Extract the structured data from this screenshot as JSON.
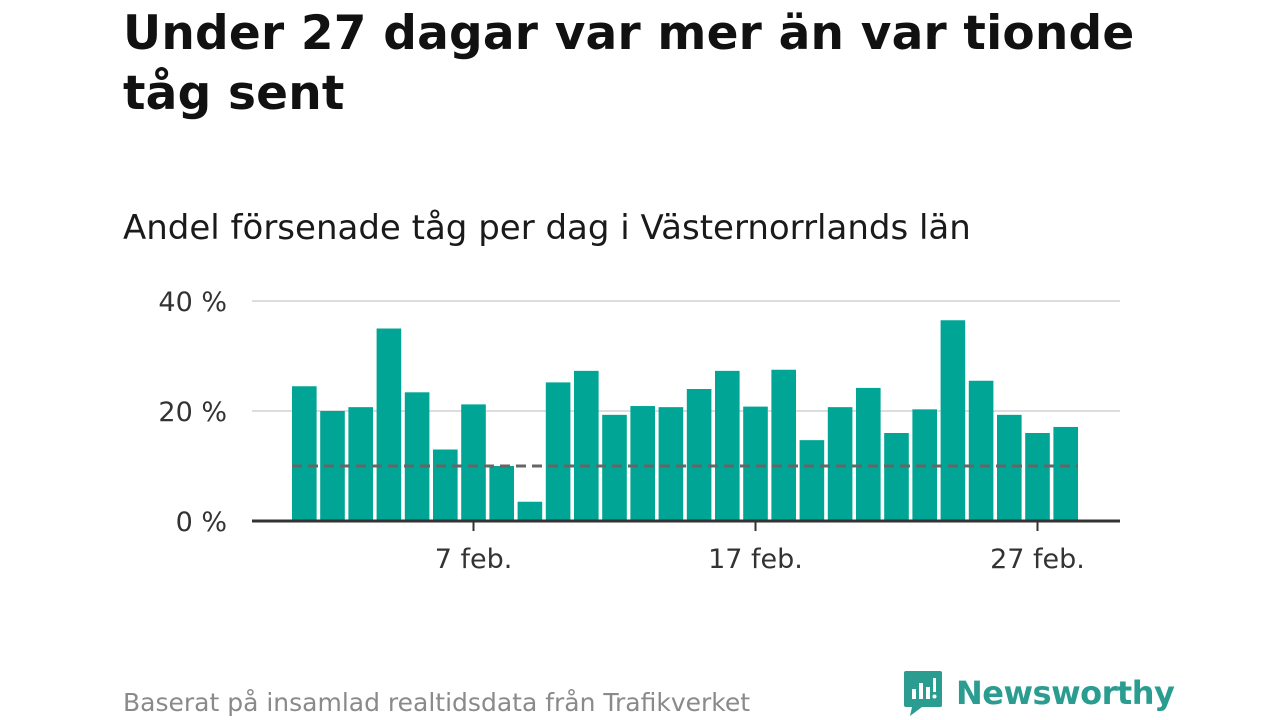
{
  "title": "Under 27 dagar var mer än var tionde tåg sent",
  "subtitle": "Andel försenade tåg per dag i Västernorrlands län",
  "source": "Baserat på insamlad realtidsdata från Trafikverket",
  "brand": "Newsworthy",
  "colors": {
    "bar": "#00A596",
    "reference_line": "#666666",
    "grid": "#dddddd",
    "axis": "#333333",
    "brand": "#2a9d90"
  },
  "chart_data": {
    "type": "bar",
    "title": "Andel försenade tåg per dag i Västernorrlands län",
    "xlabel": "",
    "ylabel": "",
    "x": [
      "2021-02-01",
      "2021-02-02",
      "2021-02-03",
      "2021-02-04",
      "2021-02-05",
      "2021-02-06",
      "2021-02-07",
      "2021-02-08",
      "2021-02-09",
      "2021-02-10",
      "2021-02-11",
      "2021-02-12",
      "2021-02-13",
      "2021-02-14",
      "2021-02-15",
      "2021-02-16",
      "2021-02-17",
      "2021-02-18",
      "2021-02-19",
      "2021-02-20",
      "2021-02-21",
      "2021-02-22",
      "2021-02-23",
      "2021-02-24",
      "2021-02-25",
      "2021-02-26",
      "2021-02-27",
      "2021-02-28"
    ],
    "values": [
      24.5,
      20.0,
      20.7,
      35.0,
      23.4,
      13.0,
      21.2,
      10.0,
      3.5,
      25.2,
      27.3,
      19.3,
      20.9,
      20.7,
      24.0,
      27.3,
      20.8,
      27.5,
      14.7,
      20.7,
      24.2,
      16.0,
      20.3,
      36.5,
      25.5,
      19.3,
      16.0,
      17.1
    ],
    "reference_line": 10,
    "ylim": [
      0,
      40
    ],
    "y_ticks": [
      0,
      20,
      40
    ],
    "y_tick_labels": [
      "0 %",
      "20 %",
      "40 %"
    ],
    "x_ticks": [
      "2021-02-07",
      "2021-02-17",
      "2021-02-27"
    ],
    "x_tick_labels": [
      "7 feb.",
      "17 feb.",
      "27 feb."
    ],
    "grid": true
  }
}
